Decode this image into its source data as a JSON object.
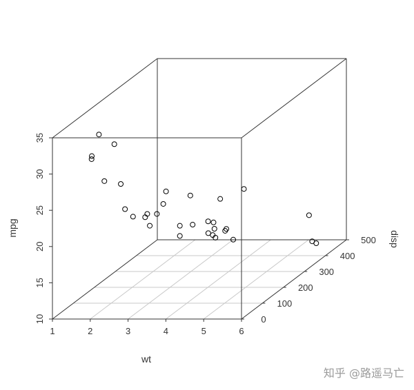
{
  "chart_data": {
    "type": "scatter3d",
    "title": "",
    "xlabel": "wt",
    "ylabel": "disp",
    "zlabel": "mpg",
    "xlim": [
      1,
      6
    ],
    "ylim": [
      0,
      500
    ],
    "zlim": [
      10,
      35
    ],
    "x_ticks": [
      "1",
      "2",
      "3",
      "4",
      "5",
      "6"
    ],
    "y_ticks": [
      "0",
      "100",
      "200",
      "300",
      "400",
      "500"
    ],
    "z_ticks": [
      "10",
      "15",
      "20",
      "25",
      "30",
      "35"
    ],
    "grid": "floor",
    "marker": "open-circle",
    "colors": {
      "axis": "#333333",
      "grid": "#c8c8c8",
      "points": "#000000"
    },
    "points": [
      [
        2.62,
        160,
        21.0
      ],
      [
        2.875,
        160,
        21.0
      ],
      [
        2.32,
        108,
        22.8
      ],
      [
        3.215,
        258,
        21.4
      ],
      [
        3.44,
        360,
        18.7
      ],
      [
        3.46,
        225,
        18.1
      ],
      [
        3.57,
        360,
        14.3
      ],
      [
        3.19,
        146.7,
        24.4
      ],
      [
        3.15,
        140.8,
        22.8
      ],
      [
        3.44,
        167.6,
        19.2
      ],
      [
        3.44,
        167.6,
        17.8
      ],
      [
        4.07,
        275.8,
        16.4
      ],
      [
        3.73,
        275.8,
        17.3
      ],
      [
        3.78,
        275.8,
        15.2
      ],
      [
        5.25,
        472,
        10.4
      ],
      [
        5.424,
        460,
        10.4
      ],
      [
        5.345,
        440,
        14.7
      ],
      [
        2.2,
        78.7,
        32.4
      ],
      [
        1.615,
        75.7,
        30.4
      ],
      [
        1.835,
        71.1,
        33.9
      ],
      [
        2.465,
        120.1,
        21.5
      ],
      [
        3.52,
        318,
        15.5
      ],
      [
        3.435,
        304,
        15.2
      ],
      [
        3.84,
        350,
        13.3
      ],
      [
        3.845,
        400,
        19.2
      ],
      [
        1.935,
        79,
        27.3
      ],
      [
        2.14,
        120.3,
        26.0
      ],
      [
        1.513,
        95.1,
        30.4
      ],
      [
        3.17,
        351,
        15.8
      ],
      [
        2.77,
        145,
        19.7
      ],
      [
        3.57,
        301,
        15.0
      ],
      [
        2.78,
        121,
        21.4
      ]
    ]
  },
  "watermark": "知乎 @路遥马亡"
}
